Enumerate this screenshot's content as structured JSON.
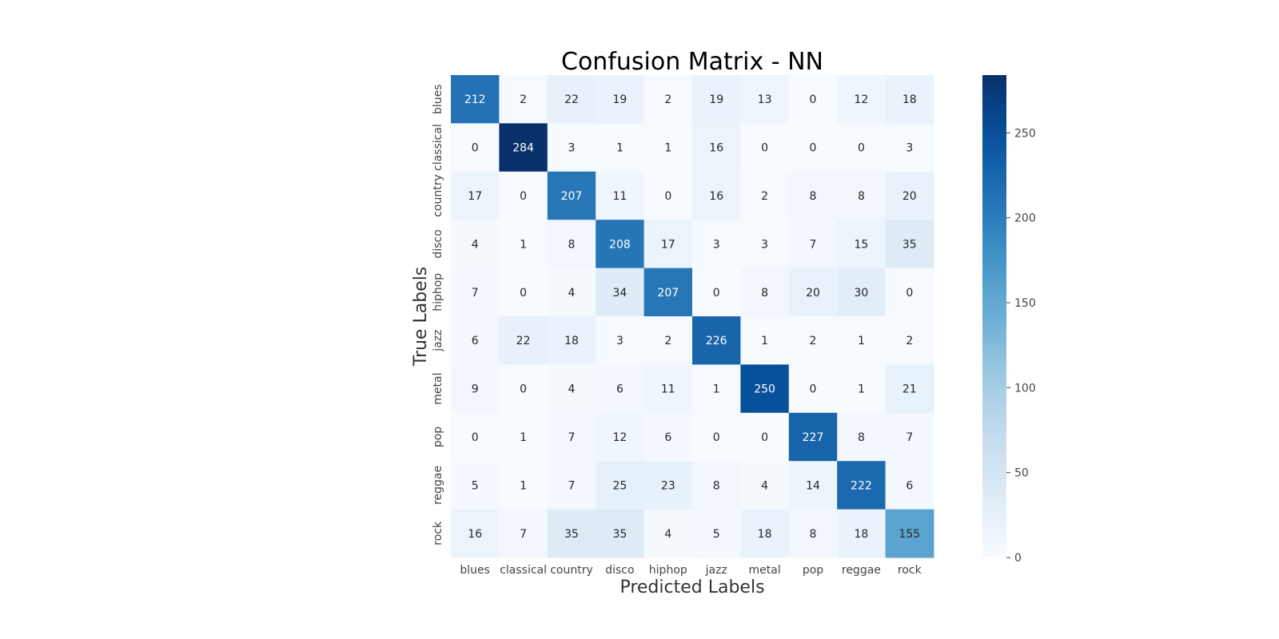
{
  "chart_data": {
    "type": "heatmap",
    "title": "Confusion Matrix - NN",
    "xlabel": "Predicted Labels",
    "ylabel": "True Labels",
    "x_categories": [
      "blues",
      "classical",
      "country",
      "disco",
      "hiphop",
      "jazz",
      "metal",
      "pop",
      "reggae",
      "rock"
    ],
    "y_categories": [
      "blues",
      "classical",
      "country",
      "disco",
      "hiphop",
      "jazz",
      "metal",
      "pop",
      "reggae",
      "rock"
    ],
    "values": [
      [
        212,
        2,
        22,
        19,
        2,
        19,
        13,
        0,
        12,
        18
      ],
      [
        0,
        284,
        3,
        1,
        1,
        16,
        0,
        0,
        0,
        3
      ],
      [
        17,
        0,
        207,
        11,
        0,
        16,
        2,
        8,
        8,
        20
      ],
      [
        4,
        1,
        8,
        208,
        17,
        3,
        3,
        7,
        15,
        35
      ],
      [
        7,
        0,
        4,
        34,
        207,
        0,
        8,
        20,
        30,
        0
      ],
      [
        6,
        22,
        18,
        3,
        2,
        226,
        1,
        2,
        1,
        2
      ],
      [
        9,
        0,
        4,
        6,
        11,
        1,
        250,
        0,
        1,
        21
      ],
      [
        0,
        1,
        7,
        12,
        6,
        0,
        0,
        227,
        8,
        7
      ],
      [
        5,
        1,
        7,
        25,
        23,
        8,
        4,
        14,
        222,
        6
      ],
      [
        16,
        7,
        35,
        35,
        4,
        5,
        18,
        8,
        18,
        155
      ]
    ],
    "colormap": "Blues",
    "value_range": [
      0,
      284
    ],
    "colorbar_ticks": [
      0,
      50,
      100,
      150,
      200,
      250
    ],
    "annotations": true,
    "grid": false
  }
}
